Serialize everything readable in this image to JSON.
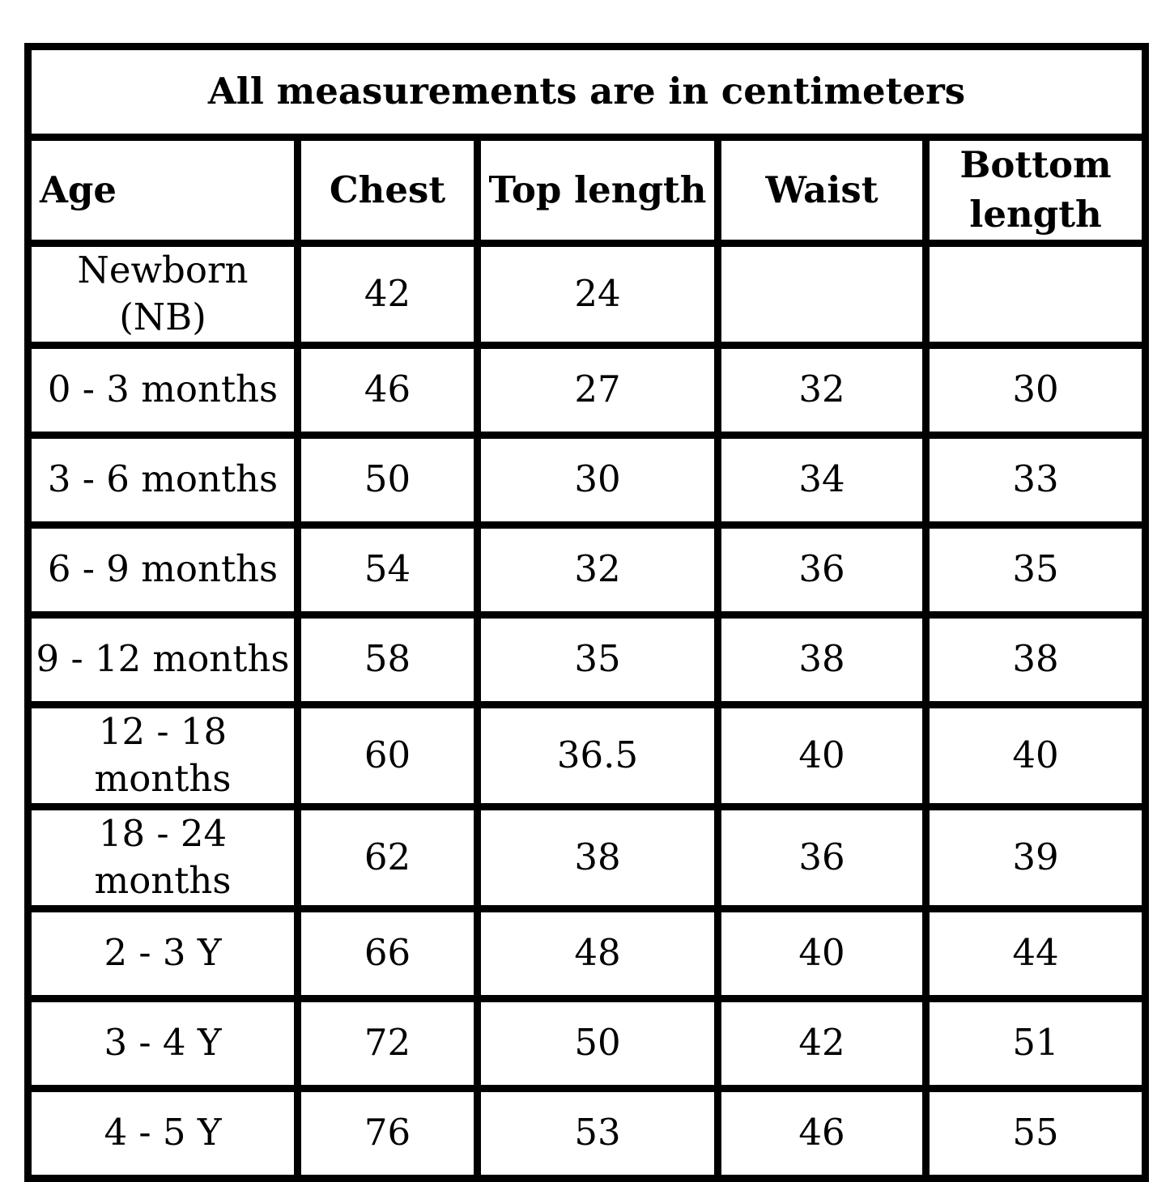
{
  "table": {
    "title": "All measurements are in centimeters",
    "headers": {
      "age": "Age",
      "chest": "Chest",
      "top_length": "Top length",
      "waist": "Waist",
      "bottom_length": "Bottom length"
    },
    "rows": [
      {
        "age": "Newborn (NB)",
        "chest": "42",
        "top_length": "24",
        "waist": "",
        "bottom_length": ""
      },
      {
        "age": "0 - 3 months",
        "chest": "46",
        "top_length": "27",
        "waist": "32",
        "bottom_length": "30"
      },
      {
        "age": "3 - 6 months",
        "chest": "50",
        "top_length": "30",
        "waist": "34",
        "bottom_length": "33"
      },
      {
        "age": "6 - 9 months",
        "chest": "54",
        "top_length": "32",
        "waist": "36",
        "bottom_length": "35"
      },
      {
        "age": "9 - 12 months",
        "chest": "58",
        "top_length": "35",
        "waist": "38",
        "bottom_length": "38"
      },
      {
        "age": "12 - 18 months",
        "chest": "60",
        "top_length": "36.5",
        "waist": "40",
        "bottom_length": "40"
      },
      {
        "age": "18 - 24 months",
        "chest": "62",
        "top_length": "38",
        "waist": "36",
        "bottom_length": "39"
      },
      {
        "age": "2 - 3 Y",
        "chest": "66",
        "top_length": "48",
        "waist": "40",
        "bottom_length": "44"
      },
      {
        "age": "3 - 4 Y",
        "chest": "72",
        "top_length": "50",
        "waist": "42",
        "bottom_length": "51"
      },
      {
        "age": "4 - 5 Y",
        "chest": "76",
        "top_length": "53",
        "waist": "46",
        "bottom_length": "55"
      }
    ],
    "colors": {
      "border": "#000000",
      "text": "#000000",
      "background": "#ffffff"
    }
  }
}
